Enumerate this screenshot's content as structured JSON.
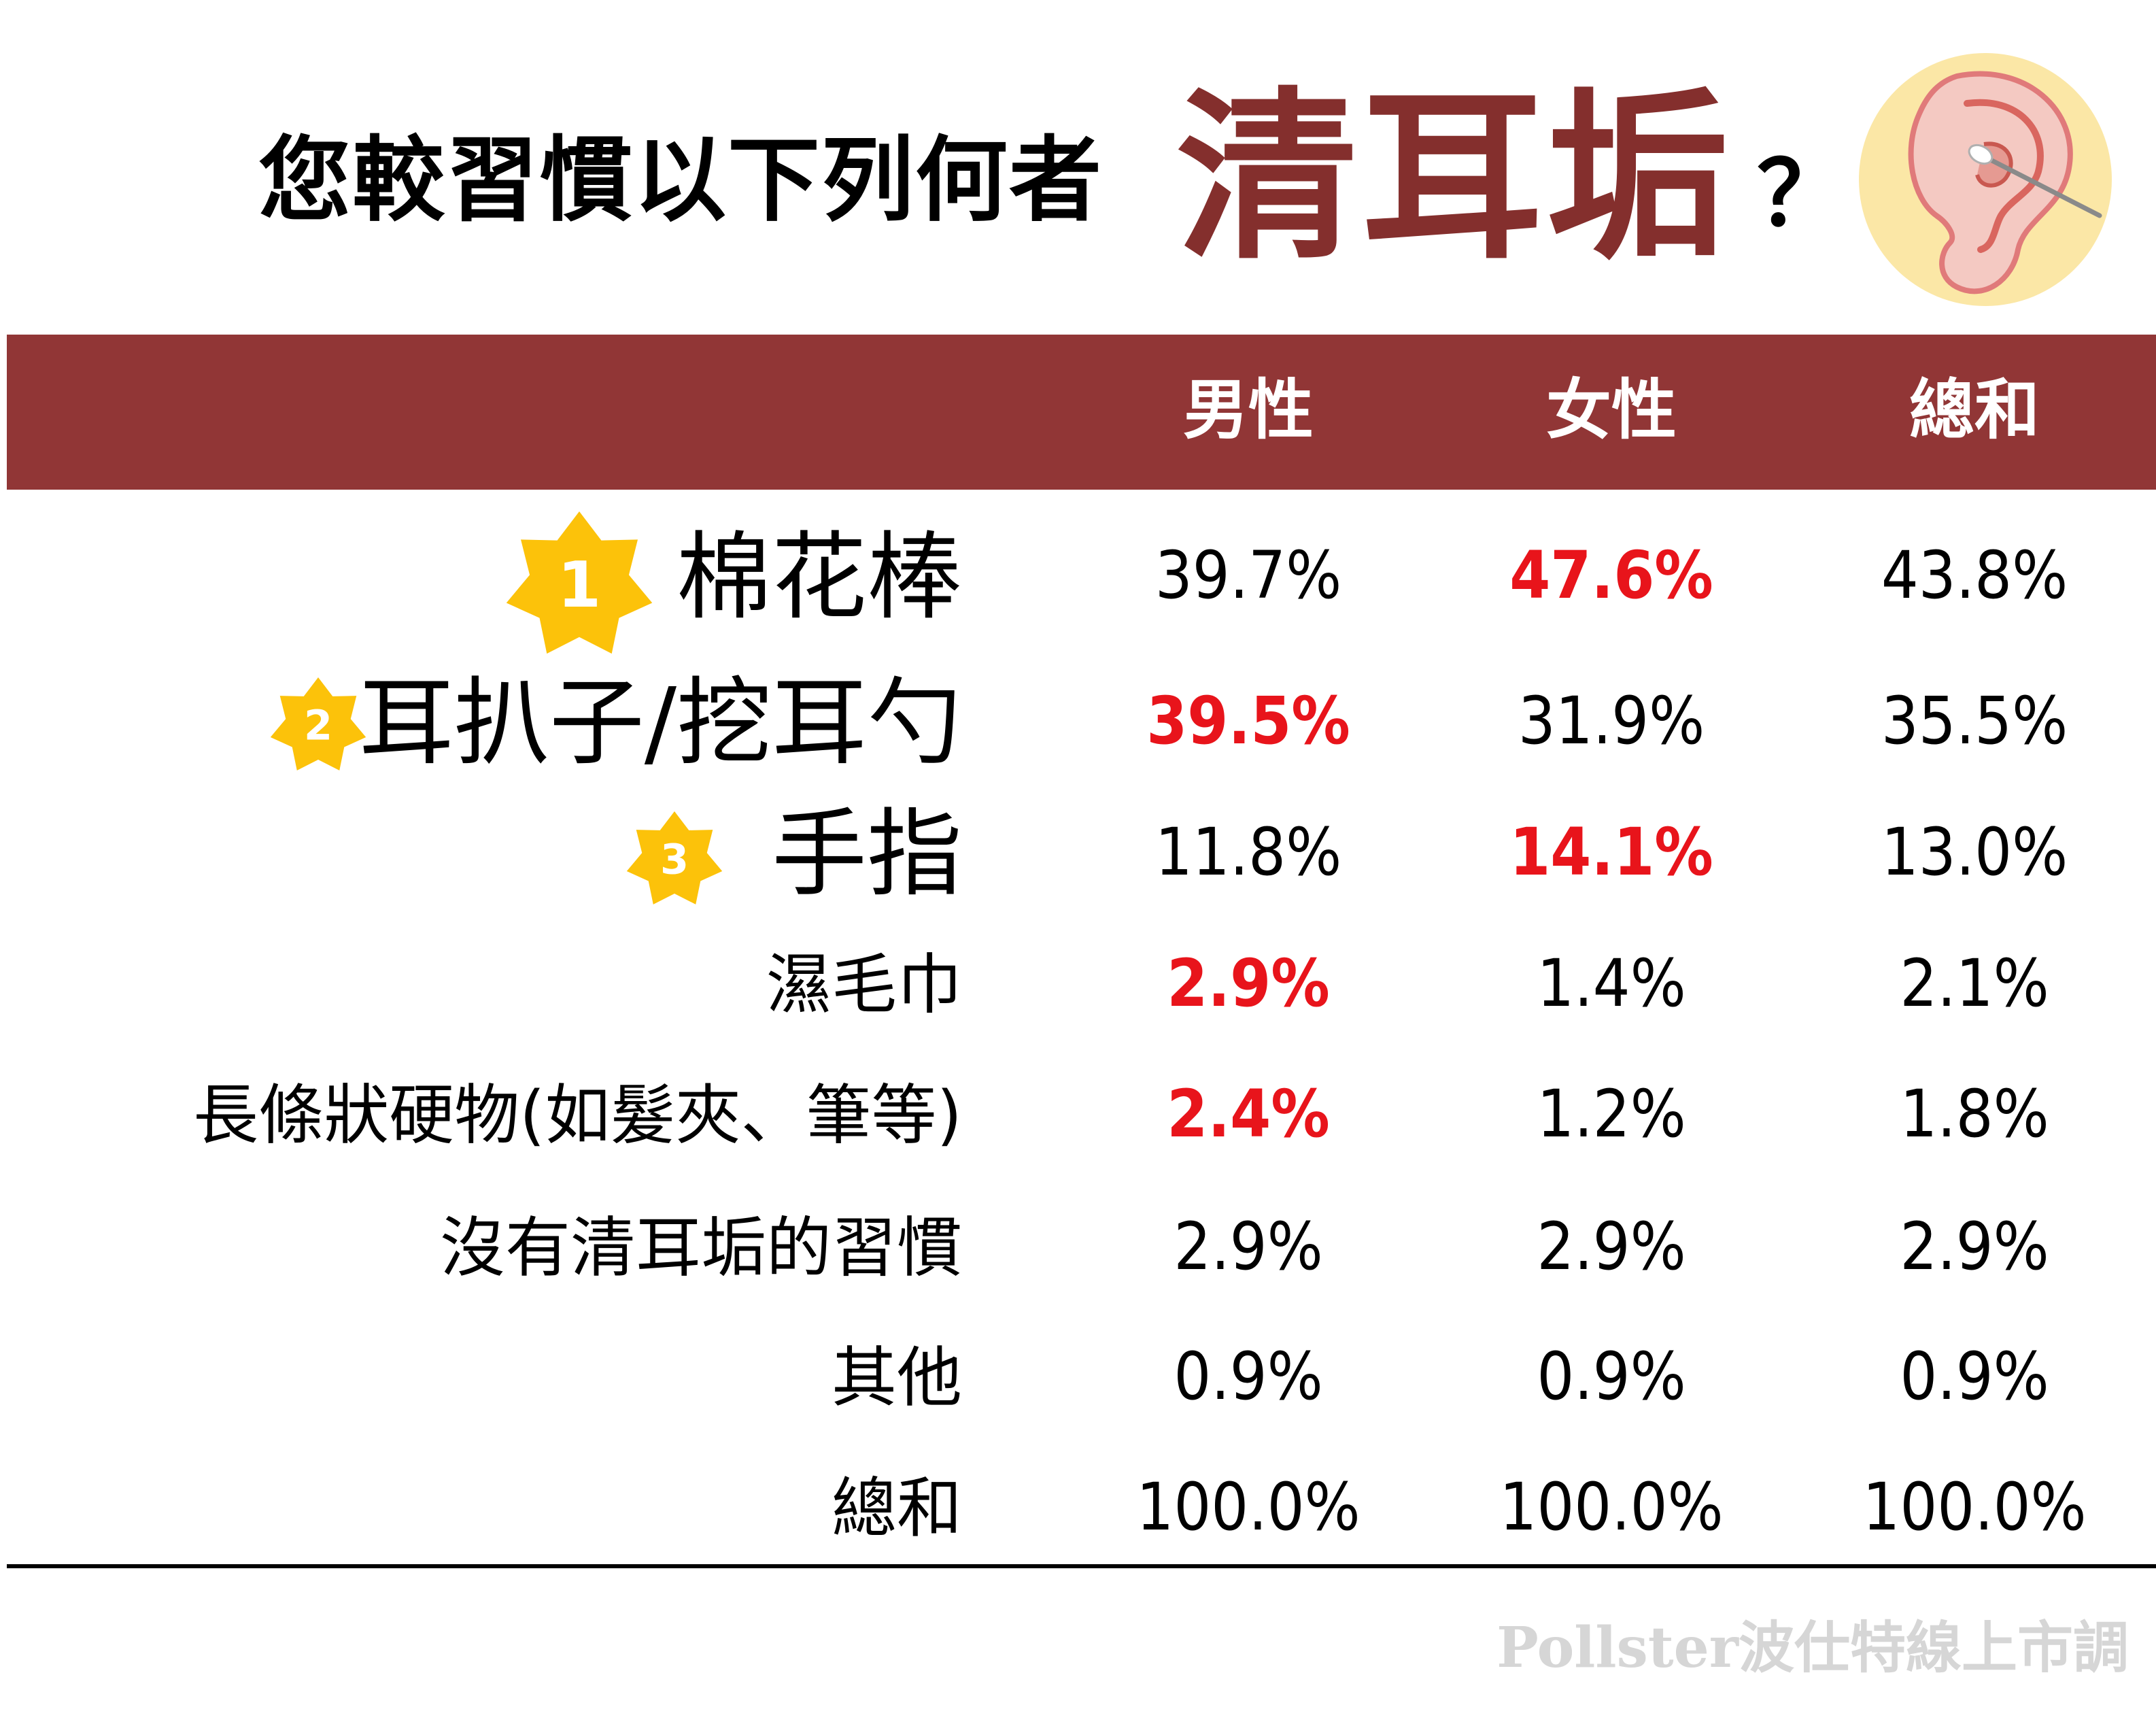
{
  "title": {
    "prefix": "您較習慣以下列何者",
    "highlight": "清耳垢",
    "suffix": "？"
  },
  "colors": {
    "header_band": "#913636",
    "title_highlight": "#842f2d",
    "highlight_value": "#e8141b",
    "badge_gold": "#fcc20a",
    "watermark": "#d6d6d6"
  },
  "icons": {
    "illustration": "ear-with-cotton-swab-icon",
    "rank_badge": "star-badge-icon"
  },
  "chart_data": {
    "type": "table",
    "columns": [
      "男性",
      "女性",
      "總和"
    ],
    "rows": [
      {
        "rank": "1",
        "label": "棉花棒",
        "values": [
          "39.7%",
          "47.6%",
          "43.8%"
        ],
        "highlight_col": 1
      },
      {
        "rank": "2",
        "label": "耳扒子/挖耳勺",
        "values": [
          "39.5%",
          "31.9%",
          "35.5%"
        ],
        "highlight_col": 0
      },
      {
        "rank": "3",
        "label": "手指",
        "values": [
          "11.8%",
          "14.1%",
          "13.0%"
        ],
        "highlight_col": 1
      },
      {
        "rank": "",
        "label": "濕毛巾",
        "values": [
          "2.9%",
          "1.4%",
          "2.1%"
        ],
        "highlight_col": 0
      },
      {
        "rank": "",
        "label": "長條狀硬物(如髮夾、筆等)",
        "values": [
          "2.4%",
          "1.2%",
          "1.8%"
        ],
        "highlight_col": 0
      },
      {
        "rank": "",
        "label": "沒有清耳垢的習慣",
        "values": [
          "2.9%",
          "2.9%",
          "2.9%"
        ],
        "highlight_col": -1
      },
      {
        "rank": "",
        "label": "其他",
        "values": [
          "0.9%",
          "0.9%",
          "0.9%"
        ],
        "highlight_col": -1
      },
      {
        "rank": "",
        "label": "總和",
        "values": [
          "100.0%",
          "100.0%",
          "100.0%"
        ],
        "highlight_col": -1
      }
    ]
  },
  "watermark": "Pollster波仕特線上市調"
}
